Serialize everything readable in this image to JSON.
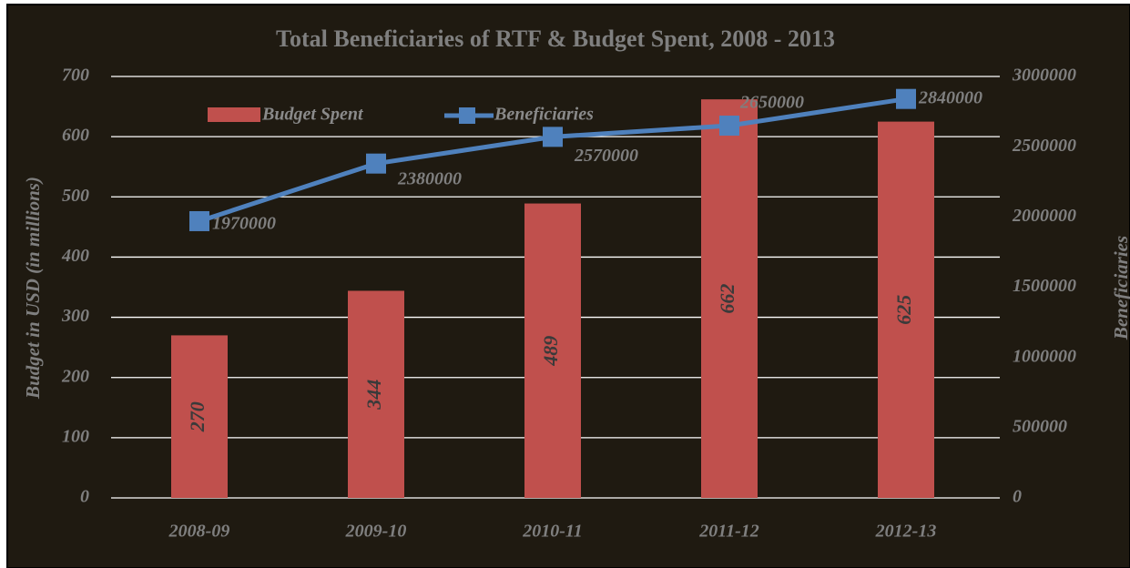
{
  "chart_data": {
    "type": "bar_line",
    "title": "Total Beneficiaries of RTF & Budget Spent, 2008 - 2013",
    "y_label": "Budget in USD (in millions)",
    "y2_label": "Beneficiaries",
    "categories": [
      "2008-09",
      "2009-10",
      "2010-11",
      "2011-12",
      "2012-13"
    ],
    "series": [
      {
        "name": "Budget Spent",
        "type": "bar",
        "color": "#c0504d",
        "values": [
          270,
          344,
          489,
          662,
          625
        ]
      },
      {
        "name": "Beneficiaries",
        "type": "line",
        "axis": "y2",
        "color": "#4f81bd",
        "values": [
          1970000,
          2380000,
          2570000,
          2650000,
          2840000
        ]
      }
    ],
    "ylim": [
      0,
      700
    ],
    "yticks": [
      0,
      100,
      200,
      300,
      400,
      500,
      600,
      700
    ],
    "y2lim": [
      0,
      3000000
    ],
    "y2ticks": [
      0,
      500000,
      1000000,
      1500000,
      2000000,
      2500000,
      3000000
    ],
    "grid": true,
    "legend": "top"
  }
}
